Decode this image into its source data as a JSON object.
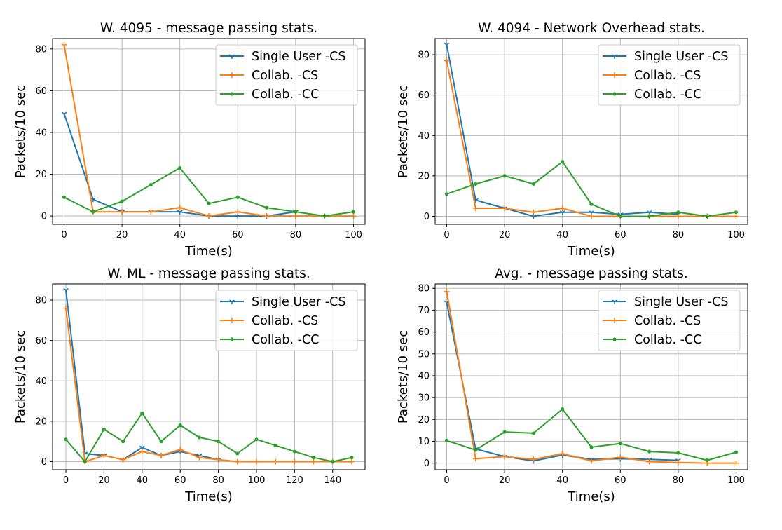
{
  "chart_data": [
    {
      "type": "line",
      "title": "W. 4095 - message passing stats.",
      "xlabel": "Time(s)",
      "ylabel": "Packets/10 sec",
      "xlim": [
        -4,
        104
      ],
      "ylim": [
        -4,
        85
      ],
      "xticks": [
        0,
        20,
        40,
        60,
        80,
        100
      ],
      "yticks": [
        0,
        20,
        40,
        60,
        80
      ],
      "grid": true,
      "legend_position": "upper right",
      "series": [
        {
          "name": "Single User -CS",
          "color": "#1f77b4",
          "marker": "tri_down",
          "x": [
            0,
            10,
            20,
            30,
            40,
            50,
            60,
            70,
            80
          ],
          "y": [
            49,
            8,
            2,
            2,
            2,
            0,
            0,
            0,
            2
          ]
        },
        {
          "name": "Collab. -CS",
          "color": "#ff7f0e",
          "marker": "plus",
          "x": [
            0,
            10,
            20,
            30,
            40,
            50,
            60,
            70,
            80,
            90,
            100
          ],
          "y": [
            82,
            2,
            2,
            2,
            4,
            0,
            2,
            0,
            0,
            0,
            0
          ]
        },
        {
          "name": "Collab. -CC",
          "color": "#2ca02c",
          "marker": "dot",
          "x": [
            0,
            10,
            20,
            30,
            40,
            50,
            60,
            70,
            80,
            90,
            100
          ],
          "y": [
            9,
            2,
            7,
            15,
            23,
            6,
            9,
            4,
            2,
            0,
            2
          ]
        }
      ]
    },
    {
      "type": "line",
      "title": "W. 4094 - Network Overhead stats.",
      "xlabel": "Time(s)",
      "ylabel": "Packets/10 sec",
      "xlim": [
        -4,
        104
      ],
      "ylim": [
        -4,
        88
      ],
      "xticks": [
        0,
        20,
        40,
        60,
        80,
        100
      ],
      "yticks": [
        0,
        20,
        40,
        60,
        80
      ],
      "grid": true,
      "legend_position": "upper right",
      "series": [
        {
          "name": "Single User -CS",
          "color": "#1f77b4",
          "marker": "tri_down",
          "x": [
            0,
            10,
            20,
            30,
            40,
            50,
            60,
            70,
            80
          ],
          "y": [
            85,
            8,
            4,
            0,
            2,
            2,
            1,
            2,
            1
          ]
        },
        {
          "name": "Collab. -CS",
          "color": "#ff7f0e",
          "marker": "plus",
          "x": [
            0,
            10,
            20,
            30,
            40,
            50,
            60,
            70,
            80,
            90,
            100
          ],
          "y": [
            77,
            4,
            4,
            2,
            4,
            0,
            0,
            0,
            0,
            0,
            0
          ]
        },
        {
          "name": "Collab. -CC",
          "color": "#2ca02c",
          "marker": "dot",
          "x": [
            0,
            10,
            20,
            30,
            40,
            50,
            60,
            70,
            80,
            90,
            100
          ],
          "y": [
            11,
            16,
            20,
            16,
            27,
            6,
            0,
            0,
            2,
            0,
            2
          ]
        }
      ]
    },
    {
      "type": "line",
      "title": "W. ML - message passing stats.",
      "xlabel": "Time(s)",
      "ylabel": "Packets/10 sec",
      "xlim": [
        -7,
        157
      ],
      "ylim": [
        -4,
        88
      ],
      "xticks": [
        0,
        20,
        40,
        60,
        80,
        100,
        120,
        140
      ],
      "yticks": [
        0,
        20,
        40,
        60,
        80
      ],
      "grid": true,
      "legend_position": "upper right",
      "series": [
        {
          "name": "Single User -CS",
          "color": "#1f77b4",
          "marker": "tri_down",
          "x": [
            0,
            10,
            20,
            30,
            40,
            50,
            60,
            70,
            80
          ],
          "y": [
            85,
            4,
            3,
            1,
            7,
            3,
            5,
            3,
            1
          ]
        },
        {
          "name": "Collab. -CS",
          "color": "#ff7f0e",
          "marker": "plus",
          "x": [
            0,
            10,
            20,
            30,
            40,
            50,
            60,
            70,
            80,
            90,
            100,
            110,
            120,
            130,
            140,
            150
          ],
          "y": [
            76,
            0,
            3,
            1,
            5,
            3,
            6,
            2,
            1,
            0,
            0,
            0,
            0,
            0,
            0,
            0
          ]
        },
        {
          "name": "Collab. -CC",
          "color": "#2ca02c",
          "marker": "dot",
          "x": [
            0,
            10,
            20,
            30,
            40,
            50,
            60,
            70,
            80,
            90,
            100,
            110,
            120,
            130,
            140,
            150
          ],
          "y": [
            11,
            0,
            16,
            10,
            24,
            10,
            18,
            12,
            10,
            4,
            11,
            8,
            5,
            2,
            0,
            2
          ]
        }
      ]
    },
    {
      "type": "line",
      "title": "Avg. - message passing stats.",
      "xlabel": "Time(s)",
      "ylabel": "Packets/10 sec",
      "xlim": [
        -4,
        104
      ],
      "ylim": [
        -3,
        82
      ],
      "xticks": [
        0,
        20,
        40,
        60,
        80,
        100
      ],
      "yticks": [
        0,
        10,
        20,
        30,
        40,
        50,
        60,
        70,
        80
      ],
      "grid": true,
      "legend_position": "upper right",
      "series": [
        {
          "name": "Single User -CS",
          "color": "#1f77b4",
          "marker": "tri_down",
          "x": [
            0,
            10,
            20,
            30,
            40,
            50,
            60,
            70,
            80
          ],
          "y": [
            73.5,
            6.5,
            3,
            1,
            3.7,
            1.7,
            2,
            1.7,
            1.3
          ]
        },
        {
          "name": "Collab. -CS",
          "color": "#ff7f0e",
          "marker": "plus",
          "x": [
            0,
            10,
            20,
            30,
            40,
            50,
            60,
            70,
            80,
            90,
            100
          ],
          "y": [
            78.5,
            2,
            3,
            1.7,
            4.3,
            1,
            2.7,
            0.7,
            0.3,
            0,
            0
          ]
        },
        {
          "name": "Collab. -CC",
          "color": "#2ca02c",
          "marker": "dot",
          "x": [
            0,
            10,
            20,
            30,
            40,
            50,
            60,
            70,
            80,
            90,
            100
          ],
          "y": [
            10.3,
            6,
            14.3,
            13.7,
            24.7,
            7.3,
            9,
            5.3,
            4.7,
            1.3,
            5
          ]
        }
      ]
    }
  ]
}
